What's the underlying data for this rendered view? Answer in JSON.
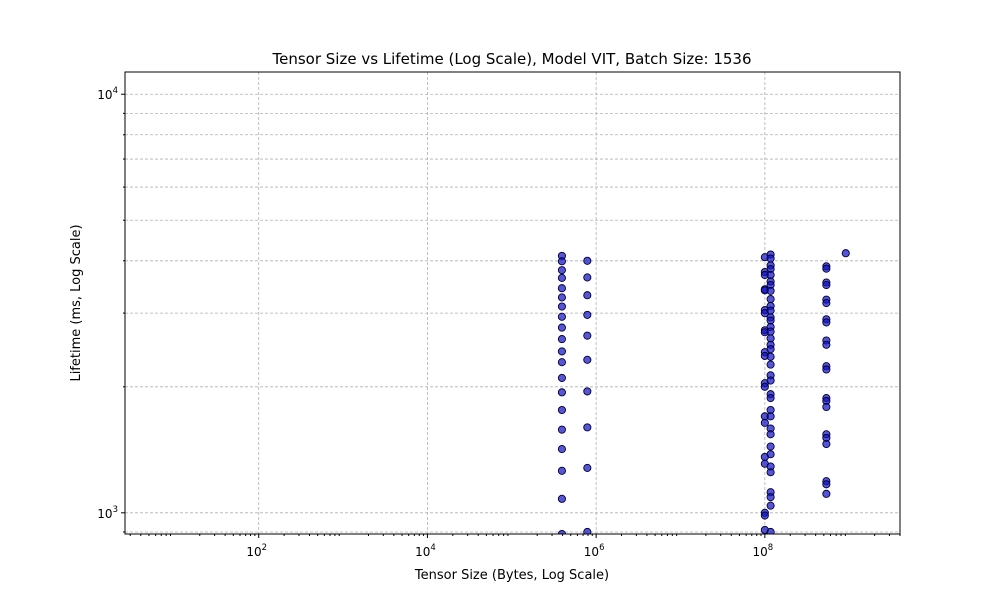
{
  "chart_data": {
    "type": "scatter",
    "title": "Tensor Size vs Lifetime (Log Scale), Model VIT, Batch Size: 1536",
    "xlabel": "Tensor Size (Bytes, Log Scale)",
    "ylabel": "Lifetime (ms, Log Scale)",
    "xscale": "log",
    "yscale": "log",
    "xlim": [
      2.6,
      4000000000
    ],
    "ylim": [
      890,
      11300
    ],
    "grid": true,
    "point_color": "#1414c8",
    "x_ticks": [
      {
        "base": "10",
        "exp": "2",
        "value": 100
      },
      {
        "base": "10",
        "exp": "4",
        "value": 10000
      },
      {
        "base": "10",
        "exp": "6",
        "value": 1000000
      },
      {
        "base": "10",
        "exp": "8",
        "value": 100000000
      }
    ],
    "y_ticks": [
      {
        "base": "10",
        "exp": "3",
        "value": 1000
      },
      {
        "base": "10",
        "exp": "4",
        "value": 10000
      }
    ],
    "series": [
      {
        "values": [
          {
            "x": 393000,
            "ys": [
              4110,
              3990,
              3800,
              3640,
              3440,
              3270,
              3110,
              2940,
              2770,
              2600,
              2430,
              2290,
              2100,
              1940,
              1760,
              1580,
              1420,
              1260,
              1080,
              890
            ]
          },
          {
            "x": 786000,
            "ys": [
              4000,
              3650,
              3310,
              2970,
              2650,
              2320,
              1950,
              1600,
              1280,
              900
            ]
          },
          {
            "x": 100000000,
            "ys": [
              4080,
              3760,
              3700,
              3420,
              3400,
              3050,
              3000,
              2730,
              2700,
              2420,
              2370,
              2040,
              2000,
              1700,
              1640,
              1360,
              1310,
              1000,
              985,
              910
            ]
          },
          {
            "x": 117000000,
            "ys": [
              4140,
              4050,
              3900,
              3820,
              3700,
              3570,
              3500,
              3390,
              3240,
              3120,
              3040,
              2930,
              2880,
              2780,
              2710,
              2610,
              2520,
              2460,
              2360,
              2260,
              2130,
              2070,
              1920,
              1880,
              1760,
              1700,
              1590,
              1540,
              1440,
              1380,
              1290,
              1250,
              1120,
              1090,
              1040,
              900
            ]
          },
          {
            "x": 536000000,
            "ys": [
              3880,
              3830,
              3550,
              3500,
              3230,
              3170,
              2900,
              2850,
              2580,
              2520,
              2240,
              2200,
              1880,
              1850,
              1790,
              1540,
              1510,
              1460,
              1190,
              1170,
              1110
            ]
          },
          {
            "x": 910000000,
            "ys": [
              4170
            ]
          }
        ]
      }
    ]
  }
}
